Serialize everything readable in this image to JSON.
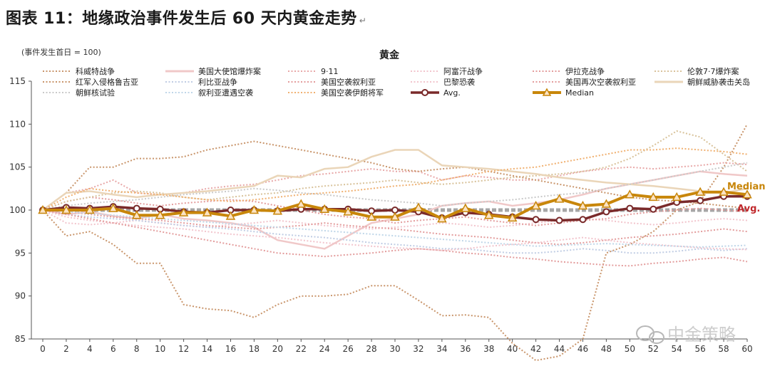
{
  "figure_title": "图表 11：地缘政治事件发生后 60 天内黄金走势",
  "title_mark": "↵",
  "watermark": "中金策略",
  "chart_data": {
    "type": "line",
    "title": "黄金",
    "ylabel": "(事件发生首日 = 100)",
    "xlabel": "",
    "ylim": [
      85,
      115
    ],
    "yticks": [
      85,
      90,
      95,
      100,
      105,
      110,
      115
    ],
    "x": [
      0,
      2,
      4,
      6,
      8,
      10,
      12,
      14,
      16,
      18,
      20,
      22,
      24,
      26,
      28,
      30,
      32,
      34,
      36,
      38,
      40,
      42,
      44,
      46,
      48,
      50,
      52,
      54,
      56,
      58,
      60
    ],
    "grid": false,
    "reference_line": {
      "y": 100,
      "color": "#a6a6a6"
    },
    "labels": {
      "median": "Median",
      "avg": "Avg."
    },
    "series": [
      {
        "name": "科威特战争",
        "color": "#c9956b",
        "style": "dotted",
        "values": [
          100,
          97,
          97.5,
          96,
          93.8,
          93.8,
          89,
          88.5,
          88.3,
          87.5,
          89,
          90,
          90,
          90.2,
          91.2,
          91.2,
          89.5,
          87.7,
          87.8,
          87.5,
          84.5,
          82.5,
          83,
          85,
          95,
          96,
          97.5,
          100,
          101,
          105,
          110
        ]
      },
      {
        "name": "美国大使馆爆炸案",
        "color": "#f0c8c8",
        "style": "solid",
        "values": [
          100,
          99.5,
          99.8,
          99.3,
          99,
          99.5,
          99,
          98.8,
          98.5,
          98,
          96.5,
          96,
          95.5,
          97,
          98.5,
          99,
          99.5,
          100.5,
          100.8,
          101,
          100.5,
          100.8,
          101.2,
          101.8,
          102.5,
          103,
          103.5,
          104,
          104.5,
          104.2,
          104
        ]
      },
      {
        "name": "9·11",
        "color": "#e8a7a7",
        "style": "dotted",
        "values": [
          100,
          102,
          102.5,
          103.5,
          102,
          101.8,
          102,
          102.5,
          102.8,
          103,
          103.5,
          104,
          104.2,
          104.5,
          104.8,
          104.5,
          104.5,
          103.5,
          104,
          103.8,
          103.5,
          103.5,
          104,
          104.5,
          104.8,
          105,
          104.8,
          105,
          105.2,
          105.5,
          105.3
        ]
      },
      {
        "name": "阿富汗战争",
        "color": "#f2c4cc",
        "style": "dotted",
        "values": [
          100,
          98.5,
          98.3,
          98.5,
          98.8,
          98.5,
          98.2,
          98,
          98.3,
          98.5,
          98.8,
          98.5,
          98.2,
          98,
          97.8,
          98,
          98.2,
          98.5,
          98.3,
          98,
          98.2,
          98.5,
          98.8,
          99,
          98.8,
          98.5,
          98.3,
          98.5,
          98.8,
          99,
          98.8
        ]
      },
      {
        "name": "伊拉克战争",
        "color": "#e39c9c",
        "style": "dotted",
        "values": [
          100,
          101,
          101.5,
          101.2,
          100.8,
          100.5,
          100.8,
          101,
          101.2,
          101,
          100.5,
          100,
          99.5,
          99.2,
          99,
          98.5,
          98.8,
          99,
          99.2,
          98.8,
          98.5,
          98.2,
          98.5,
          98.8,
          99,
          99.5,
          99.8,
          100,
          100.2,
          100,
          99.8
        ]
      },
      {
        "name": "伦敦7·7爆炸案",
        "color": "#d8c29a",
        "style": "dotted",
        "values": [
          100,
          101,
          101.5,
          102,
          102.2,
          102,
          101.5,
          101.2,
          101.5,
          101.8,
          102,
          102.5,
          102.8,
          103,
          103.2,
          103.5,
          103.2,
          103,
          103.2,
          103.5,
          103.8,
          104,
          104.2,
          104.5,
          105,
          106,
          107.5,
          109.2,
          108.5,
          106.5,
          104.5
        ]
      },
      {
        "name": "红军入侵格鲁吉亚",
        "color": "#c9956b",
        "style": "dotted",
        "values": [
          100,
          102,
          105,
          105,
          106,
          106,
          106.2,
          107,
          107.5,
          108,
          107.5,
          107,
          106.5,
          106,
          105.5,
          104.8,
          104.5,
          104.8,
          105,
          104.5,
          104,
          103.5,
          103,
          102.5,
          102,
          101.5,
          101.2,
          101,
          100.8,
          100.5,
          100.2
        ]
      },
      {
        "name": "利比亚战争",
        "color": "#c0cde4",
        "style": "dotted",
        "values": [
          100,
          99.5,
          99.2,
          99,
          98.8,
          98.5,
          98.2,
          98,
          97.8,
          97.5,
          97.2,
          97,
          96.8,
          96.5,
          96.2,
          96,
          95.8,
          95.5,
          95.5,
          95.2,
          95,
          95,
          95.2,
          95.5,
          95.3,
          95,
          95,
          95.2,
          95.5,
          95.3,
          95.5
        ]
      },
      {
        "name": "美国空袭叙利亚",
        "color": "#e39c9c",
        "style": "dotted",
        "values": [
          100,
          99.8,
          99.5,
          99.2,
          99,
          98.8,
          98.5,
          98.2,
          98,
          97.8,
          98,
          98.2,
          98.5,
          98.2,
          98,
          97.8,
          97.5,
          97.2,
          97,
          96.8,
          96.5,
          96.2,
          96,
          96.2,
          96.5,
          96.8,
          97,
          97.2,
          97.5,
          97.8,
          97.5
        ]
      },
      {
        "name": "巴黎恐袭",
        "color": "#f2c4cc",
        "style": "dotted",
        "values": [
          100,
          99.2,
          98.8,
          98.5,
          98.2,
          98,
          97.8,
          97.5,
          97.2,
          97,
          96.8,
          96.5,
          96.2,
          96,
          95.8,
          95.6,
          95.5,
          95.3,
          95.5,
          95.8,
          96,
          96.2,
          96.5,
          96.8,
          96.5,
          96.2,
          96,
          95.8,
          95.6,
          95.5,
          95.4
        ]
      },
      {
        "name": "美国再次空袭叙利亚",
        "color": "#e39c9c",
        "style": "dotted",
        "values": [
          100,
          99.5,
          99,
          98.5,
          98,
          97.5,
          97,
          96.5,
          96,
          95.5,
          95,
          94.8,
          94.6,
          94.8,
          95,
          95.3,
          95.5,
          95.3,
          95,
          94.8,
          94.5,
          94.3,
          94,
          93.8,
          93.6,
          93.5,
          93.8,
          94,
          94.3,
          94.5,
          94
        ]
      },
      {
        "name": "朝鲜威胁袭击关岛",
        "color": "#ead5b8",
        "style": "solid",
        "values": [
          100,
          102,
          102.2,
          101.8,
          101.5,
          101.8,
          102,
          102.2,
          102.5,
          102.8,
          104,
          103.8,
          104.8,
          105,
          106.2,
          107,
          107,
          105.2,
          105,
          104.8,
          104.5,
          104.2,
          103.8,
          103.5,
          103.2,
          103,
          102.8,
          102.5,
          102.2,
          102,
          102.5
        ]
      },
      {
        "name": "朝鲜核试验",
        "color": "#c9c9c9",
        "style": "dotted",
        "values": [
          100,
          100.5,
          100.8,
          101,
          101.2,
          101.5,
          101.8,
          102,
          102.2,
          102.5,
          102.3,
          102,
          101.8,
          101.5,
          101.2,
          101,
          100.8,
          100.5,
          100.8,
          101,
          101.2,
          101.5,
          101.8,
          102,
          102.5,
          103,
          103.5,
          104,
          104.5,
          105,
          105.5
        ]
      },
      {
        "name": "叙利亚遭遇空袭",
        "color": "#bfd6e8",
        "style": "dotted",
        "values": [
          100,
          99.8,
          99.6,
          99.4,
          99.2,
          99,
          98.8,
          98.6,
          98.4,
          98.2,
          98,
          97.8,
          97.6,
          97.4,
          97.2,
          97,
          96.8,
          96.6,
          96.4,
          96.2,
          96,
          95.8,
          95.9,
          96,
          96.1,
          96,
          95.9,
          95.8,
          95.7,
          95.8,
          95.9
        ]
      },
      {
        "name": "美国空袭伊朗将军",
        "color": "#f0b070",
        "style": "dotted",
        "values": [
          100,
          101.5,
          102.5,
          102.2,
          102,
          101.8,
          101.5,
          101.2,
          101,
          101.2,
          101.5,
          101.8,
          102,
          102.2,
          102.5,
          102.8,
          103,
          103.5,
          104,
          104.5,
          104.8,
          105,
          105.5,
          106,
          106.5,
          107,
          107,
          107.2,
          107,
          106.8,
          106.5
        ]
      },
      {
        "name": "Avg.",
        "color": "#7a2a2a",
        "style": "avg",
        "values": [
          100,
          100.3,
          100.2,
          100.4,
          100.2,
          100.1,
          99.8,
          99.7,
          100,
          100,
          99.9,
          100.1,
          100.1,
          100.1,
          99.9,
          100,
          99.8,
          99.1,
          99.7,
          99.5,
          99.2,
          98.9,
          98.8,
          98.9,
          99.8,
          100.2,
          100.1,
          100.9,
          101.1,
          101.6,
          101.6
        ]
      },
      {
        "name": "Median",
        "color": "#c8860a",
        "style": "median",
        "values": [
          100,
          100,
          100,
          100.2,
          99.4,
          99.4,
          99.7,
          99.7,
          99.3,
          100,
          99.9,
          100.7,
          100.1,
          99.8,
          99.2,
          99.2,
          100.3,
          99,
          100.2,
          99.4,
          99.1,
          100.5,
          101.3,
          100.5,
          100.7,
          101.8,
          101.5,
          101.5,
          102.1,
          102.1,
          101.8
        ]
      }
    ]
  }
}
